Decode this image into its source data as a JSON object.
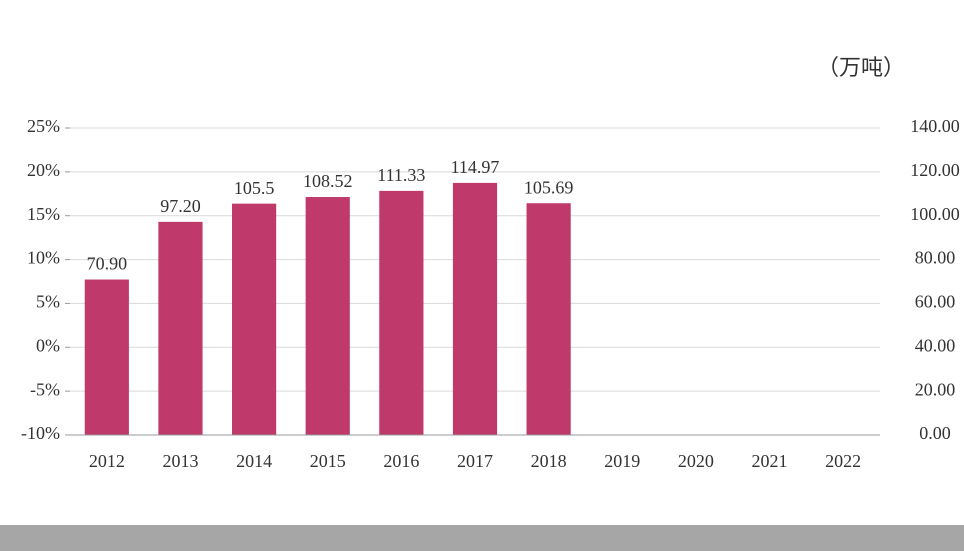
{
  "chart_data": {
    "type": "bar",
    "unit": "（万吨）",
    "categories": [
      "2012",
      "2013",
      "2014",
      "2015",
      "2016",
      "2017",
      "2018",
      "2019",
      "2020",
      "2021",
      "2022"
    ],
    "values": [
      70.9,
      97.2,
      105.5,
      108.52,
      111.33,
      114.97,
      105.69,
      null,
      null,
      null,
      null
    ],
    "value_labels": [
      "70.90",
      "97.20",
      "105.5",
      "108.52",
      "111.33",
      "114.97",
      "105.69",
      null,
      null,
      null,
      null
    ],
    "color": "#c0396b",
    "ylim": [
      0,
      140
    ],
    "yticks": [
      {
        "value": 0,
        "label": "0.00"
      },
      {
        "value": 20,
        "label": "20.00"
      },
      {
        "value": 40,
        "label": "40.00"
      },
      {
        "value": 60,
        "label": "60.00"
      },
      {
        "value": 80,
        "label": "80.00"
      },
      {
        "value": 100,
        "label": "100.00"
      },
      {
        "value": 120,
        "label": "120.00"
      },
      {
        "value": 140,
        "label": "140.00"
      }
    ],
    "y2lim": [
      -10,
      25
    ],
    "y2ticks": [
      {
        "value": -10,
        "label": "-10%"
      },
      {
        "value": -5,
        "label": "-5%"
      },
      {
        "value": 0,
        "label": "0%"
      },
      {
        "value": 5,
        "label": "5%"
      },
      {
        "value": 10,
        "label": "10%"
      },
      {
        "value": 15,
        "label": "15%"
      },
      {
        "value": 20,
        "label": "20%"
      },
      {
        "value": 25,
        "label": "25%"
      }
    ],
    "grid": true
  }
}
